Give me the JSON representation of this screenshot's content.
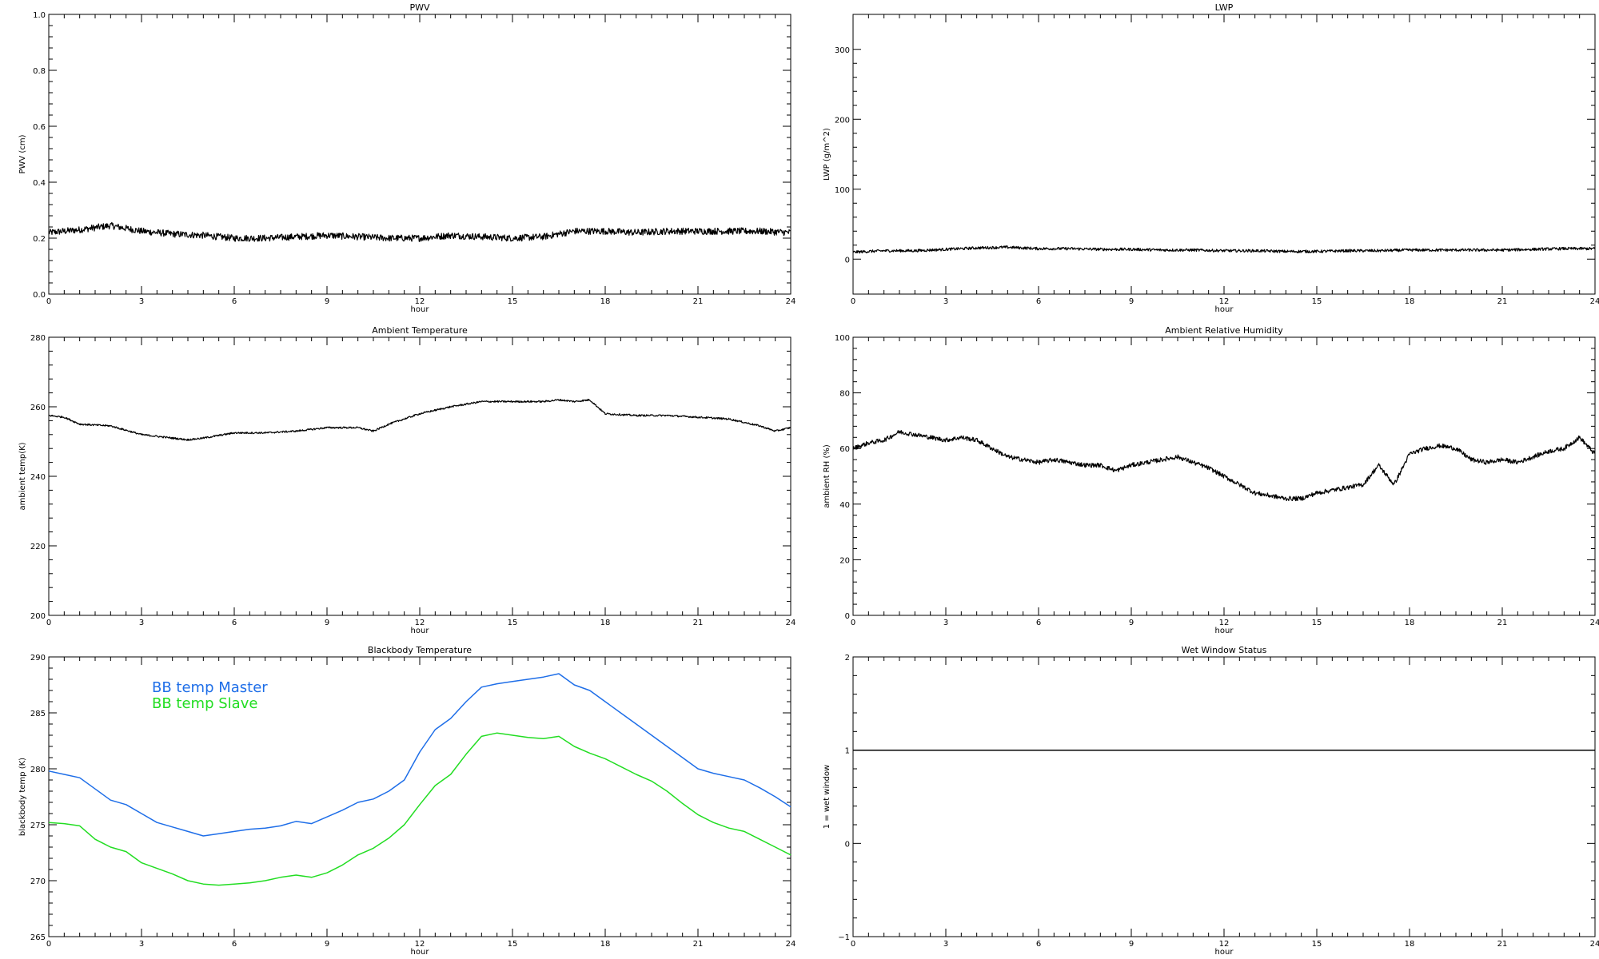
{
  "chart_data": [
    {
      "id": "pwv",
      "type": "line",
      "title": "PWV",
      "xlabel": "hour",
      "ylabel": "PWV (cm)",
      "xlim": [
        0,
        24
      ],
      "ylim": [
        0,
        1
      ],
      "xticks": [
        0,
        3,
        6,
        9,
        12,
        15,
        18,
        21,
        24
      ],
      "yticks": [
        "0.0",
        "0.2",
        "0.4",
        "0.6",
        "0.8",
        "1.0"
      ],
      "noise": 0.012,
      "series": [
        {
          "color": "#000000",
          "x": [
            0,
            1,
            2,
            3,
            4,
            5,
            6,
            7,
            8,
            9,
            10,
            11,
            12,
            13,
            14,
            15,
            16,
            17,
            18,
            19,
            20,
            21,
            22,
            23,
            24
          ],
          "values": [
            0.22,
            0.23,
            0.245,
            0.225,
            0.215,
            0.21,
            0.2,
            0.2,
            0.205,
            0.21,
            0.205,
            0.2,
            0.2,
            0.21,
            0.205,
            0.2,
            0.205,
            0.225,
            0.225,
            0.22,
            0.225,
            0.225,
            0.225,
            0.225,
            0.22
          ]
        }
      ]
    },
    {
      "id": "lwp",
      "type": "line",
      "title": "LWP",
      "xlabel": "hour",
      "ylabel": "LWP (g/m^2)",
      "xlim": [
        0,
        24
      ],
      "ylim": [
        -50,
        350
      ],
      "xticks": [
        0,
        3,
        6,
        9,
        12,
        15,
        18,
        21,
        24
      ],
      "yticks": [
        "0",
        "100",
        "200",
        "300"
      ],
      "noise": 2,
      "series": [
        {
          "color": "#000000",
          "x": [
            0,
            1,
            2,
            3,
            4,
            5,
            6,
            7,
            8,
            9,
            10,
            11,
            12,
            13,
            14,
            15,
            16,
            17,
            18,
            19,
            20,
            21,
            22,
            23,
            24
          ],
          "values": [
            10,
            12,
            12,
            14,
            16,
            17,
            15,
            15,
            14,
            14,
            13,
            13,
            12,
            12,
            11,
            11,
            12,
            12,
            13,
            13,
            13,
            13,
            14,
            15,
            15
          ]
        }
      ]
    },
    {
      "id": "ambient-temp",
      "type": "line",
      "title": "Ambient Temperature",
      "xlabel": "hour",
      "ylabel": "ambient temp(K)",
      "xlim": [
        0,
        24
      ],
      "ylim": [
        200,
        280
      ],
      "xticks": [
        0,
        3,
        6,
        9,
        12,
        15,
        18,
        21,
        24
      ],
      "yticks": [
        "200",
        "220",
        "240",
        "260",
        "280"
      ],
      "noise": 0.25,
      "series": [
        {
          "color": "#000000",
          "x": [
            0,
            0.5,
            1,
            2,
            3,
            4,
            4.5,
            5,
            6,
            7,
            8,
            9,
            10,
            10.5,
            11,
            12,
            13,
            14,
            15,
            16,
            16.5,
            17,
            17.5,
            18,
            19,
            20,
            21,
            22,
            23,
            23.5,
            24
          ],
          "values": [
            257.5,
            257,
            255,
            254.5,
            252,
            251,
            250.5,
            251,
            252.5,
            252.5,
            253,
            254,
            254,
            253,
            255,
            258,
            260,
            261.5,
            261.5,
            261.5,
            262,
            261.5,
            262,
            258,
            257.5,
            257.5,
            257,
            256.5,
            254.5,
            253,
            254
          ]
        }
      ]
    },
    {
      "id": "ambient-rh",
      "type": "line",
      "title": "Ambient Relative Humidity",
      "xlabel": "hour",
      "ylabel": "ambient RH (%)",
      "xlim": [
        0,
        24
      ],
      "ylim": [
        0,
        100
      ],
      "xticks": [
        0,
        3,
        6,
        9,
        12,
        15,
        18,
        21,
        24
      ],
      "yticks": [
        "0",
        "20",
        "40",
        "60",
        "80",
        "100"
      ],
      "noise": 0.8,
      "series": [
        {
          "color": "#000000",
          "x": [
            0,
            0.5,
            1,
            1.5,
            2,
            2.5,
            3,
            3.5,
            4,
            4.5,
            5,
            5.5,
            6,
            6.5,
            7,
            7.5,
            8,
            8.5,
            9,
            9.5,
            10,
            10.5,
            11,
            11.5,
            12,
            12.5,
            13,
            13.5,
            14,
            14.5,
            15,
            15.5,
            16,
            16.5,
            17,
            17.5,
            18,
            18.5,
            19,
            19.5,
            20,
            20.5,
            21,
            21.5,
            22,
            22.5,
            23,
            23.5,
            24
          ],
          "values": [
            60,
            62,
            63,
            66,
            65,
            64,
            63,
            64,
            63,
            60,
            57,
            56,
            55,
            56,
            55,
            54,
            54,
            52,
            54,
            55,
            56,
            57,
            55,
            53,
            50,
            47,
            44,
            43,
            42,
            42,
            44,
            45,
            46,
            47,
            54,
            47,
            58,
            60,
            61,
            60,
            56,
            55,
            56,
            55,
            57,
            59,
            60,
            64,
            58
          ]
        }
      ]
    },
    {
      "id": "bb-temp",
      "type": "line",
      "title": "Blackbody Temperature",
      "xlabel": "hour",
      "ylabel": "blackbody temp (K)",
      "xlim": [
        0,
        24
      ],
      "ylim": [
        265,
        290
      ],
      "xticks": [
        0,
        3,
        6,
        9,
        12,
        15,
        18,
        21,
        24
      ],
      "yticks": [
        "265",
        "270",
        "275",
        "280",
        "285",
        "290"
      ],
      "noise": 0,
      "legend": [
        "BB temp Master",
        "BB temp Slave"
      ],
      "series": [
        {
          "name": "BB temp Master",
          "color": "#1e6ee8",
          "x": [
            0,
            0.5,
            1,
            1.5,
            2,
            2.5,
            3,
            3.5,
            4,
            4.5,
            5,
            5.5,
            6,
            6.5,
            7,
            7.5,
            8,
            8.5,
            9,
            9.5,
            10,
            10.5,
            11,
            11.5,
            12,
            12.5,
            13,
            13.5,
            14,
            14.5,
            15,
            15.5,
            16,
            16.5,
            17,
            17.5,
            18,
            18.5,
            19,
            19.5,
            20,
            20.5,
            21,
            21.5,
            22,
            22.5,
            23,
            23.5,
            24
          ],
          "values": [
            279.8,
            279.5,
            279.2,
            278.2,
            277.2,
            276.8,
            276,
            275.2,
            274.8,
            274.4,
            274.0,
            274.2,
            274.4,
            274.6,
            274.7,
            274.9,
            275.3,
            275.1,
            275.7,
            276.3,
            277.0,
            277.3,
            278.0,
            279.0,
            281.5,
            283.5,
            284.5,
            286,
            287.3,
            287.6,
            287.8,
            288.0,
            288.2,
            288.5,
            287.5,
            287.0,
            286.0,
            285.0,
            284.0,
            283.0,
            282.0,
            281.0,
            280.0,
            279.6,
            279.3,
            279.0,
            278.3,
            277.5,
            276.6
          ]
        },
        {
          "name": "BB temp Slave",
          "color": "#22dd22",
          "x": [
            0,
            0.5,
            1,
            1.5,
            2,
            2.5,
            3,
            3.5,
            4,
            4.5,
            5,
            5.5,
            6,
            6.5,
            7,
            7.5,
            8,
            8.5,
            9,
            9.5,
            10,
            10.5,
            11,
            11.5,
            12,
            12.5,
            13,
            13.5,
            14,
            14.5,
            15,
            15.5,
            16,
            16.5,
            17,
            17.5,
            18,
            18.5,
            19,
            19.5,
            20,
            20.5,
            21,
            21.5,
            22,
            22.5,
            23,
            23.5,
            24
          ],
          "values": [
            275.2,
            275.1,
            274.9,
            273.7,
            273.0,
            272.6,
            271.6,
            271.1,
            270.6,
            270.0,
            269.7,
            269.6,
            269.7,
            269.8,
            270.0,
            270.3,
            270.5,
            270.3,
            270.7,
            271.4,
            272.3,
            272.9,
            273.8,
            275.0,
            276.8,
            278.5,
            279.5,
            281.3,
            282.9,
            283.2,
            283.0,
            282.8,
            282.7,
            282.9,
            282.0,
            281.4,
            280.9,
            280.2,
            279.5,
            278.9,
            278.0,
            276.9,
            275.9,
            275.2,
            274.7,
            274.4,
            273.7,
            273.0,
            272.3
          ]
        }
      ]
    },
    {
      "id": "wet-window",
      "type": "line",
      "title": "Wet Window Status",
      "xlabel": "hour",
      "ylabel": "1 = wet window",
      "xlim": [
        0,
        24
      ],
      "ylim": [
        -1,
        2
      ],
      "xticks": [
        0,
        3,
        6,
        9,
        12,
        15,
        18,
        21,
        24
      ],
      "yticks": [
        "−1",
        "0",
        "1",
        "2"
      ],
      "noise": 0,
      "series": [
        {
          "color": "#000000",
          "x": [
            0,
            24
          ],
          "values": [
            1,
            1
          ]
        }
      ]
    }
  ]
}
